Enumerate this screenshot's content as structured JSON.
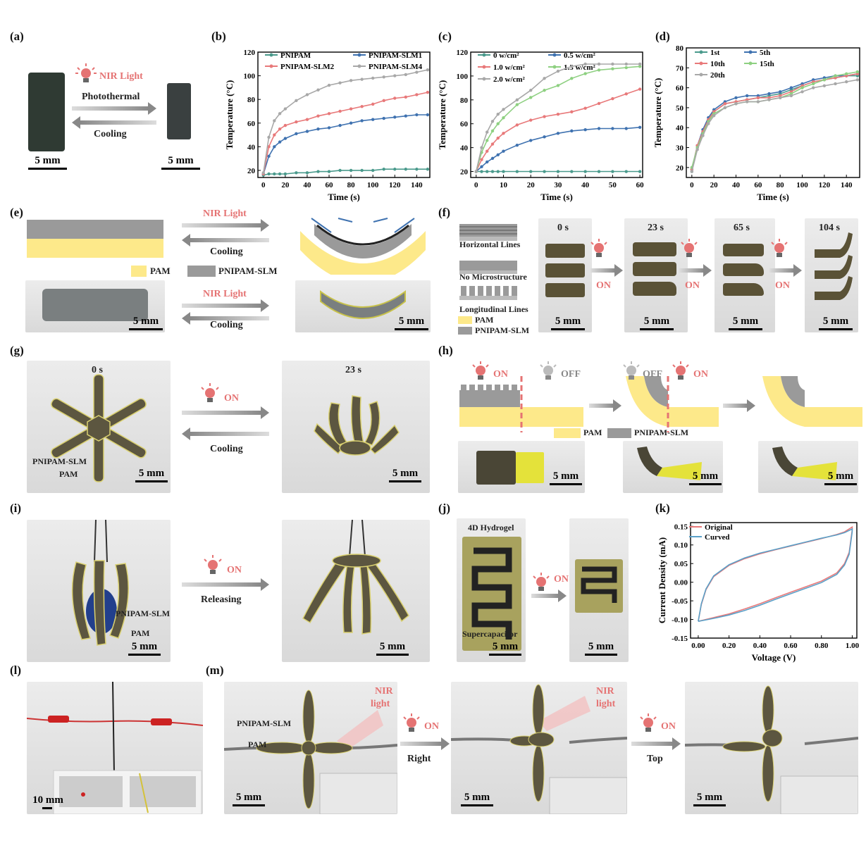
{
  "panels": {
    "a": {
      "label": "(a)",
      "nir": "NIR Light",
      "photothermal": "Photothermal",
      "cooling": "Cooling",
      "scale1": "5 mm",
      "scale2": "5 mm"
    },
    "e": {
      "label": "(e)",
      "nir1": "NIR Light",
      "cooling1": "Cooling",
      "nir2": "NIR Light",
      "cooling2": "Cooling",
      "legend_pam": "PAM",
      "legend_slm": "PNIPAM-SLM",
      "scale1": "5 mm",
      "scale2": "5 mm"
    },
    "f": {
      "label": "(f)",
      "horizontal": "Horizontal Lines",
      "nomicro": "No Microstructure",
      "longitudinal": "Longitudinal Lines",
      "legend_pam": "PAM",
      "legend_slm": "PNIPAM-SLM",
      "t0": "0 s",
      "t1": "23 s",
      "t2": "65 s",
      "t3": "104 s",
      "on1": "ON",
      "on2": "ON",
      "on3": "ON",
      "scale": "5 mm"
    },
    "g": {
      "label": "(g)",
      "t0": "0 s",
      "t1": "23 s",
      "on": "ON",
      "cooling": "Cooling",
      "slm": "PNIPAM-SLM",
      "pam": "PAM",
      "scale": "5 mm"
    },
    "h": {
      "label": "(h)",
      "on1": "ON",
      "off1": "OFF",
      "off2": "OFF",
      "on2": "ON",
      "legend_pam": "PAM",
      "legend_slm": "PNIPAM-SLM",
      "scale": "5 mm"
    },
    "i": {
      "label": "(i)",
      "on": "ON",
      "releasing": "Releasing",
      "slm": "PNIPAM-SLM",
      "pam": "PAM",
      "scale": "5 mm"
    },
    "j": {
      "label": "(j)",
      "hydrogel": "4D Hydrogel",
      "supercap": "Supercapacitor",
      "on": "ON",
      "scale": "5 mm"
    },
    "l": {
      "label": "(l)",
      "scale": "10 mm"
    },
    "m": {
      "label": "(m)",
      "slm": "PNIPAM-SLM",
      "pam": "PAM",
      "nir1": "NIR",
      "light1": "light",
      "nir2": "NIR",
      "light2": "light",
      "on1": "ON",
      "on2": "ON",
      "right": "Right",
      "top": "Top",
      "scale": "5 mm"
    }
  },
  "chart_data": [
    {
      "id": "b",
      "label": "(b)",
      "type": "line",
      "xlabel": "Time (s)",
      "ylabel": "Temperature (°C)",
      "xlim": [
        -5,
        152
      ],
      "ylim": [
        14,
        120
      ],
      "xticks": [
        0,
        20,
        40,
        60,
        80,
        100,
        120,
        140
      ],
      "yticks": [
        20,
        40,
        60,
        80,
        100,
        120
      ],
      "series": [
        {
          "name": "PNIPAM",
          "color": "#4a9a8c",
          "x": [
            0,
            5,
            10,
            15,
            20,
            30,
            40,
            50,
            60,
            70,
            80,
            90,
            100,
            110,
            120,
            130,
            140,
            150
          ],
          "y": [
            16,
            17,
            17,
            17,
            17,
            18,
            18,
            19,
            19,
            20,
            20,
            20,
            20,
            21,
            21,
            21,
            21,
            21
          ]
        },
        {
          "name": "PNIPAM-SLM1",
          "color": "#3f72b0",
          "x": [
            0,
            5,
            10,
            15,
            20,
            30,
            40,
            50,
            60,
            70,
            80,
            90,
            100,
            110,
            120,
            130,
            140,
            150
          ],
          "y": [
            17,
            32,
            40,
            44,
            47,
            51,
            53,
            55,
            56,
            58,
            60,
            62,
            63,
            64,
            65,
            66,
            67,
            67
          ]
        },
        {
          "name": "PNIPAM-SLM2",
          "color": "#e8797a",
          "x": [
            0,
            5,
            10,
            15,
            20,
            30,
            40,
            50,
            60,
            70,
            80,
            90,
            100,
            110,
            120,
            130,
            140,
            150
          ],
          "y": [
            17,
            40,
            50,
            55,
            58,
            61,
            63,
            66,
            68,
            70,
            72,
            74,
            76,
            79,
            81,
            82,
            84,
            86
          ]
        },
        {
          "name": "PNIPAM-SLM4",
          "color": "#a8a8a8",
          "x": [
            0,
            5,
            10,
            15,
            20,
            30,
            40,
            50,
            60,
            70,
            80,
            90,
            100,
            110,
            120,
            130,
            140,
            150
          ],
          "y": [
            18,
            48,
            62,
            68,
            72,
            79,
            84,
            88,
            92,
            94,
            96,
            97,
            98,
            99,
            100,
            101,
            103,
            105
          ]
        }
      ]
    },
    {
      "id": "c",
      "label": "(c)",
      "type": "line",
      "xlabel": "Time (s)",
      "ylabel": "Temperature (°C)",
      "xlim": [
        -2,
        61
      ],
      "ylim": [
        15,
        120
      ],
      "xticks": [
        0,
        10,
        20,
        30,
        40,
        50,
        60
      ],
      "yticks": [
        20,
        40,
        60,
        80,
        100,
        120
      ],
      "series": [
        {
          "name": "0 w/cm²",
          "color": "#4a9a8c",
          "x": [
            0,
            2,
            4,
            6,
            8,
            10,
            15,
            20,
            25,
            30,
            35,
            40,
            45,
            50,
            55,
            60
          ],
          "y": [
            20,
            20,
            20,
            20,
            20,
            20,
            20,
            20,
            20,
            20,
            20,
            20,
            20,
            20,
            20,
            20
          ]
        },
        {
          "name": "0.5 w/cm²",
          "color": "#3f72b0",
          "x": [
            0,
            2,
            4,
            6,
            8,
            10,
            15,
            20,
            25,
            30,
            35,
            40,
            45,
            50,
            55,
            60
          ],
          "y": [
            20,
            24,
            28,
            31,
            34,
            37,
            42,
            46,
            49,
            52,
            54,
            55,
            56,
            56,
            56,
            57
          ]
        },
        {
          "name": "1.0 w/cm²",
          "color": "#e8797a",
          "x": [
            0,
            2,
            4,
            6,
            8,
            10,
            15,
            20,
            25,
            30,
            35,
            40,
            45,
            50,
            55,
            60
          ],
          "y": [
            20,
            30,
            37,
            43,
            48,
            52,
            59,
            63,
            66,
            68,
            70,
            73,
            77,
            81,
            85,
            89
          ]
        },
        {
          "name": "1.5 w/cm²",
          "color": "#8ed081",
          "x": [
            0,
            2,
            4,
            6,
            8,
            10,
            15,
            20,
            25,
            30,
            35,
            40,
            45,
            50,
            55,
            60
          ],
          "y": [
            20,
            36,
            46,
            54,
            60,
            65,
            76,
            82,
            88,
            92,
            98,
            102,
            105,
            106,
            107,
            108
          ]
        },
        {
          "name": "2.0 w/cm²",
          "color": "#a8a8a8",
          "x": [
            0,
            2,
            4,
            6,
            8,
            10,
            15,
            20,
            25,
            30,
            35,
            40,
            45,
            50,
            55,
            60
          ],
          "y": [
            20,
            40,
            53,
            62,
            68,
            72,
            80,
            88,
            98,
            104,
            108,
            110,
            110,
            110,
            110,
            110
          ]
        }
      ]
    },
    {
      "id": "d",
      "label": "(d)",
      "type": "line",
      "xlabel": "Time (s)",
      "ylabel": "Temperature (°C)",
      "xlim": [
        -5,
        152
      ],
      "ylim": [
        15,
        80
      ],
      "xticks": [
        0,
        20,
        40,
        60,
        80,
        100,
        120,
        140
      ],
      "yticks": [
        20,
        30,
        40,
        50,
        60,
        70,
        80
      ],
      "series": [
        {
          "name": "1st",
          "color": "#4a9a8c",
          "x": [
            0,
            5,
            10,
            15,
            20,
            30,
            40,
            50,
            60,
            70,
            80,
            90,
            100,
            110,
            120,
            130,
            140,
            150
          ],
          "y": [
            18,
            30,
            38,
            44,
            48,
            52,
            53,
            54,
            55,
            56,
            57,
            59,
            61,
            63,
            64,
            65,
            66,
            66
          ]
        },
        {
          "name": "5th",
          "color": "#3f72b0",
          "x": [
            0,
            5,
            10,
            15,
            20,
            30,
            40,
            50,
            60,
            70,
            80,
            90,
            100,
            110,
            120,
            130,
            140,
            150
          ],
          "y": [
            19,
            31,
            39,
            45,
            49,
            53,
            55,
            56,
            56,
            57,
            58,
            60,
            62,
            64,
            65,
            66,
            66,
            67
          ]
        },
        {
          "name": "10th",
          "color": "#e8797a",
          "x": [
            0,
            5,
            10,
            15,
            20,
            30,
            40,
            50,
            60,
            70,
            80,
            90,
            100,
            110,
            120,
            130,
            140,
            150
          ],
          "y": [
            19,
            31,
            38,
            44,
            48,
            52,
            53,
            54,
            55,
            55,
            56,
            58,
            61,
            63,
            64,
            65,
            66,
            67
          ]
        },
        {
          "name": "15th",
          "color": "#8ed081",
          "x": [
            0,
            5,
            10,
            15,
            20,
            30,
            40,
            50,
            60,
            70,
            80,
            90,
            100,
            110,
            120,
            130,
            140,
            150
          ],
          "y": [
            20,
            30,
            37,
            43,
            47,
            50,
            52,
            53,
            53,
            54,
            55,
            57,
            60,
            62,
            64,
            66,
            67,
            68
          ]
        },
        {
          "name": "20th",
          "color": "#a8a8a8",
          "x": [
            0,
            5,
            10,
            15,
            20,
            30,
            40,
            50,
            60,
            70,
            80,
            90,
            100,
            110,
            120,
            130,
            140,
            150
          ],
          "y": [
            18,
            29,
            36,
            42,
            46,
            50,
            52,
            53,
            53,
            54,
            55,
            56,
            58,
            60,
            61,
            62,
            63,
            64
          ]
        }
      ]
    },
    {
      "id": "k",
      "label": "(k)",
      "type": "line",
      "xlabel": "Voltage (V)",
      "ylabel": "Current Density (mA)",
      "xlim": [
        -0.05,
        1.03
      ],
      "ylim": [
        -0.15,
        0.16
      ],
      "xticks": [
        0.0,
        0.2,
        0.4,
        0.6,
        0.8,
        1.0
      ],
      "yticks": [
        -0.15,
        -0.1,
        -0.05,
        0.0,
        0.05,
        0.1,
        0.15
      ],
      "series": [
        {
          "name": "Original",
          "color": "#e8797a",
          "x": [
            0.0,
            0.02,
            0.05,
            0.1,
            0.2,
            0.3,
            0.4,
            0.5,
            0.6,
            0.7,
            0.8,
            0.9,
            0.95,
            1.0,
            1.0,
            0.98,
            0.95,
            0.9,
            0.8,
            0.7,
            0.6,
            0.5,
            0.4,
            0.3,
            0.2,
            0.1,
            0.05,
            0.0
          ],
          "y": [
            -0.105,
            -0.06,
            -0.02,
            0.015,
            0.045,
            0.063,
            0.076,
            0.087,
            0.097,
            0.107,
            0.117,
            0.128,
            0.135,
            0.148,
            0.14,
            0.08,
            0.05,
            0.025,
            0.003,
            -0.012,
            -0.027,
            -0.042,
            -0.058,
            -0.072,
            -0.085,
            -0.095,
            -0.1,
            -0.105
          ]
        },
        {
          "name": "Curved",
          "color": "#5aa0c8",
          "x": [
            0.0,
            0.02,
            0.05,
            0.1,
            0.2,
            0.3,
            0.4,
            0.5,
            0.6,
            0.7,
            0.8,
            0.9,
            0.95,
            1.0,
            1.0,
            0.98,
            0.95,
            0.9,
            0.8,
            0.7,
            0.6,
            0.5,
            0.4,
            0.3,
            0.2,
            0.1,
            0.05,
            0.0
          ],
          "y": [
            -0.105,
            -0.058,
            -0.018,
            0.017,
            0.047,
            0.065,
            0.078,
            0.088,
            0.098,
            0.108,
            0.118,
            0.127,
            0.133,
            0.143,
            0.135,
            0.075,
            0.046,
            0.021,
            -0.001,
            -0.016,
            -0.031,
            -0.046,
            -0.062,
            -0.076,
            -0.088,
            -0.097,
            -0.101,
            -0.105
          ]
        }
      ]
    }
  ]
}
